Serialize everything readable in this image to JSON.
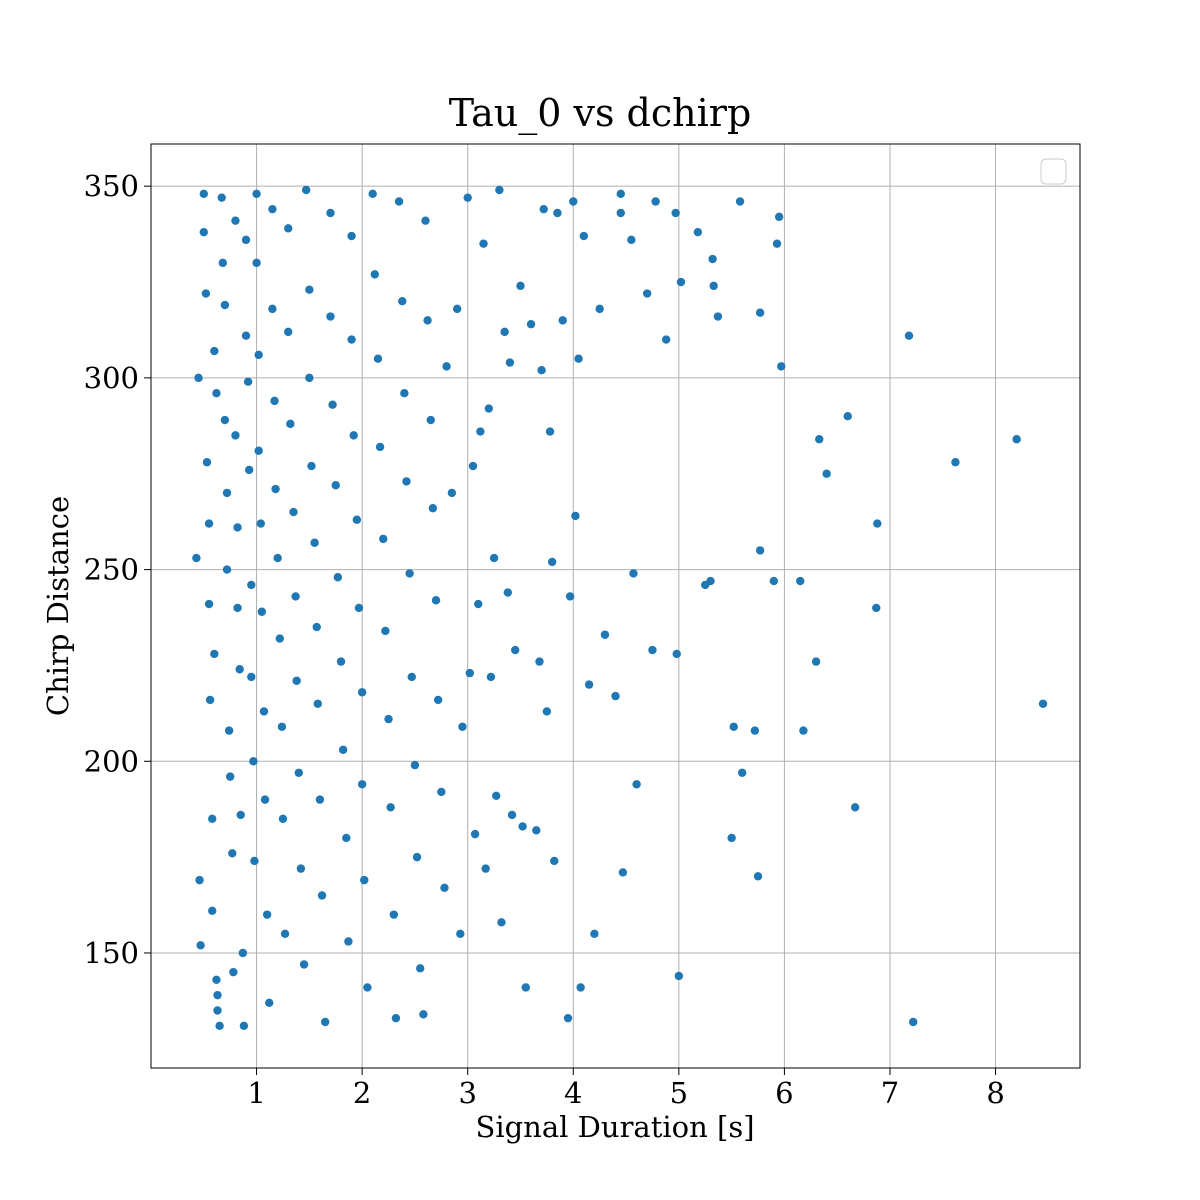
{
  "chart_data": {
    "type": "scatter",
    "title": "Tau_0 vs dchirp",
    "xlabel": "Signal Duration [s]",
    "ylabel": "Chirp Distance",
    "xlim": [
      0.0,
      8.8
    ],
    "ylim": [
      120,
      361
    ],
    "xticks": [
      1,
      2,
      3,
      4,
      5,
      6,
      7,
      8
    ],
    "yticks": [
      150,
      200,
      250,
      300,
      350
    ],
    "grid": true,
    "legend": "top-right (empty)",
    "marker_color": "#1f77b4",
    "series": [
      {
        "values": [
          [
            0.43,
            253
          ],
          [
            0.45,
            300
          ],
          [
            0.46,
            169
          ],
          [
            0.47,
            152
          ],
          [
            0.5,
            348
          ],
          [
            0.5,
            338
          ],
          [
            0.52,
            322
          ],
          [
            0.53,
            278
          ],
          [
            0.55,
            262
          ],
          [
            0.55,
            241
          ],
          [
            0.56,
            216
          ],
          [
            0.58,
            185
          ],
          [
            0.58,
            161
          ],
          [
            0.6,
            307
          ],
          [
            0.6,
            228
          ],
          [
            0.62,
            296
          ],
          [
            0.62,
            143
          ],
          [
            0.63,
            139
          ],
          [
            0.63,
            135
          ],
          [
            0.65,
            131
          ],
          [
            0.67,
            347
          ],
          [
            0.68,
            330
          ],
          [
            0.7,
            319
          ],
          [
            0.7,
            289
          ],
          [
            0.72,
            270
          ],
          [
            0.72,
            250
          ],
          [
            0.74,
            208
          ],
          [
            0.75,
            196
          ],
          [
            0.77,
            176
          ],
          [
            0.78,
            145
          ],
          [
            0.8,
            341
          ],
          [
            0.8,
            285
          ],
          [
            0.82,
            261
          ],
          [
            0.82,
            240
          ],
          [
            0.84,
            224
          ],
          [
            0.85,
            186
          ],
          [
            0.87,
            150
          ],
          [
            0.88,
            131
          ],
          [
            0.9,
            336
          ],
          [
            0.9,
            311
          ],
          [
            0.92,
            299
          ],
          [
            0.93,
            276
          ],
          [
            0.95,
            246
          ],
          [
            0.95,
            222
          ],
          [
            0.97,
            200
          ],
          [
            0.98,
            174
          ],
          [
            1.0,
            348
          ],
          [
            1.0,
            330
          ],
          [
            1.02,
            306
          ],
          [
            1.02,
            281
          ],
          [
            1.04,
            262
          ],
          [
            1.05,
            239
          ],
          [
            1.07,
            213
          ],
          [
            1.08,
            190
          ],
          [
            1.1,
            160
          ],
          [
            1.12,
            137
          ],
          [
            1.15,
            344
          ],
          [
            1.15,
            318
          ],
          [
            1.17,
            294
          ],
          [
            1.18,
            271
          ],
          [
            1.2,
            253
          ],
          [
            1.22,
            232
          ],
          [
            1.24,
            209
          ],
          [
            1.25,
            185
          ],
          [
            1.27,
            155
          ],
          [
            1.3,
            339
          ],
          [
            1.3,
            312
          ],
          [
            1.32,
            288
          ],
          [
            1.35,
            265
          ],
          [
            1.37,
            243
          ],
          [
            1.38,
            221
          ],
          [
            1.4,
            197
          ],
          [
            1.42,
            172
          ],
          [
            1.45,
            147
          ],
          [
            1.47,
            349
          ],
          [
            1.5,
            323
          ],
          [
            1.5,
            300
          ],
          [
            1.52,
            277
          ],
          [
            1.55,
            257
          ],
          [
            1.57,
            235
          ],
          [
            1.58,
            215
          ],
          [
            1.6,
            190
          ],
          [
            1.62,
            165
          ],
          [
            1.65,
            132
          ],
          [
            1.7,
            343
          ],
          [
            1.7,
            316
          ],
          [
            1.72,
            293
          ],
          [
            1.75,
            272
          ],
          [
            1.77,
            248
          ],
          [
            1.8,
            226
          ],
          [
            1.82,
            203
          ],
          [
            1.85,
            180
          ],
          [
            1.87,
            153
          ],
          [
            1.9,
            337
          ],
          [
            1.9,
            310
          ],
          [
            1.92,
            285
          ],
          [
            1.95,
            263
          ],
          [
            1.97,
            240
          ],
          [
            2.0,
            218
          ],
          [
            2.0,
            194
          ],
          [
            2.02,
            169
          ],
          [
            2.05,
            141
          ],
          [
            2.1,
            348
          ],
          [
            2.12,
            327
          ],
          [
            2.15,
            305
          ],
          [
            2.17,
            282
          ],
          [
            2.2,
            258
          ],
          [
            2.22,
            234
          ],
          [
            2.25,
            211
          ],
          [
            2.27,
            188
          ],
          [
            2.3,
            160
          ],
          [
            2.32,
            133
          ],
          [
            2.35,
            346
          ],
          [
            2.38,
            320
          ],
          [
            2.4,
            296
          ],
          [
            2.42,
            273
          ],
          [
            2.45,
            249
          ],
          [
            2.47,
            222
          ],
          [
            2.5,
            199
          ],
          [
            2.52,
            175
          ],
          [
            2.55,
            146
          ],
          [
            2.58,
            134
          ],
          [
            2.6,
            341
          ],
          [
            2.62,
            315
          ],
          [
            2.65,
            289
          ],
          [
            2.67,
            266
          ],
          [
            2.7,
            242
          ],
          [
            2.72,
            216
          ],
          [
            2.75,
            192
          ],
          [
            2.78,
            167
          ],
          [
            2.8,
            303
          ],
          [
            2.85,
            270
          ],
          [
            2.9,
            318
          ],
          [
            2.93,
            155
          ],
          [
            2.95,
            209
          ],
          [
            3.0,
            347
          ],
          [
            3.02,
            223
          ],
          [
            3.05,
            277
          ],
          [
            3.07,
            181
          ],
          [
            3.1,
            241
          ],
          [
            3.12,
            286
          ],
          [
            3.15,
            335
          ],
          [
            3.17,
            172
          ],
          [
            3.2,
            292
          ],
          [
            3.22,
            222
          ],
          [
            3.25,
            253
          ],
          [
            3.27,
            191
          ],
          [
            3.3,
            349
          ],
          [
            3.32,
            158
          ],
          [
            3.35,
            312
          ],
          [
            3.38,
            244
          ],
          [
            3.4,
            304
          ],
          [
            3.42,
            186
          ],
          [
            3.45,
            229
          ],
          [
            3.5,
            324
          ],
          [
            3.52,
            183
          ],
          [
            3.55,
            141
          ],
          [
            3.6,
            314
          ],
          [
            3.65,
            182
          ],
          [
            3.68,
            226
          ],
          [
            3.7,
            302
          ],
          [
            3.72,
            344
          ],
          [
            3.75,
            213
          ],
          [
            3.78,
            286
          ],
          [
            3.8,
            252
          ],
          [
            3.82,
            174
          ],
          [
            3.85,
            343
          ],
          [
            3.9,
            315
          ],
          [
            3.95,
            133
          ],
          [
            3.97,
            243
          ],
          [
            4.0,
            346
          ],
          [
            4.02,
            264
          ],
          [
            4.05,
            305
          ],
          [
            4.07,
            141
          ],
          [
            4.1,
            337
          ],
          [
            4.15,
            220
          ],
          [
            4.2,
            155
          ],
          [
            4.25,
            318
          ],
          [
            4.3,
            233
          ],
          [
            4.4,
            217
          ],
          [
            4.45,
            348
          ],
          [
            4.45,
            343
          ],
          [
            4.47,
            171
          ],
          [
            4.55,
            336
          ],
          [
            4.57,
            249
          ],
          [
            4.6,
            194
          ],
          [
            4.7,
            322
          ],
          [
            4.75,
            229
          ],
          [
            4.78,
            346
          ],
          [
            4.88,
            310
          ],
          [
            4.97,
            343
          ],
          [
            4.98,
            228
          ],
          [
            5.0,
            144
          ],
          [
            5.02,
            325
          ],
          [
            5.18,
            338
          ],
          [
            5.25,
            246
          ],
          [
            5.3,
            247
          ],
          [
            5.32,
            331
          ],
          [
            5.33,
            324
          ],
          [
            5.37,
            316
          ],
          [
            5.5,
            180
          ],
          [
            5.52,
            209
          ],
          [
            5.58,
            346
          ],
          [
            5.6,
            197
          ],
          [
            5.72,
            208
          ],
          [
            5.75,
            170
          ],
          [
            5.77,
            317
          ],
          [
            5.77,
            255
          ],
          [
            5.9,
            247
          ],
          [
            5.93,
            335
          ],
          [
            5.95,
            342
          ],
          [
            5.97,
            303
          ],
          [
            6.15,
            247
          ],
          [
            6.18,
            208
          ],
          [
            6.3,
            226
          ],
          [
            6.33,
            284
          ],
          [
            6.4,
            275
          ],
          [
            6.6,
            290
          ],
          [
            6.67,
            188
          ],
          [
            6.87,
            240
          ],
          [
            6.88,
            262
          ],
          [
            7.18,
            311
          ],
          [
            7.22,
            132
          ],
          [
            7.62,
            278
          ],
          [
            8.2,
            284
          ],
          [
            8.45,
            215
          ]
        ]
      }
    ]
  }
}
